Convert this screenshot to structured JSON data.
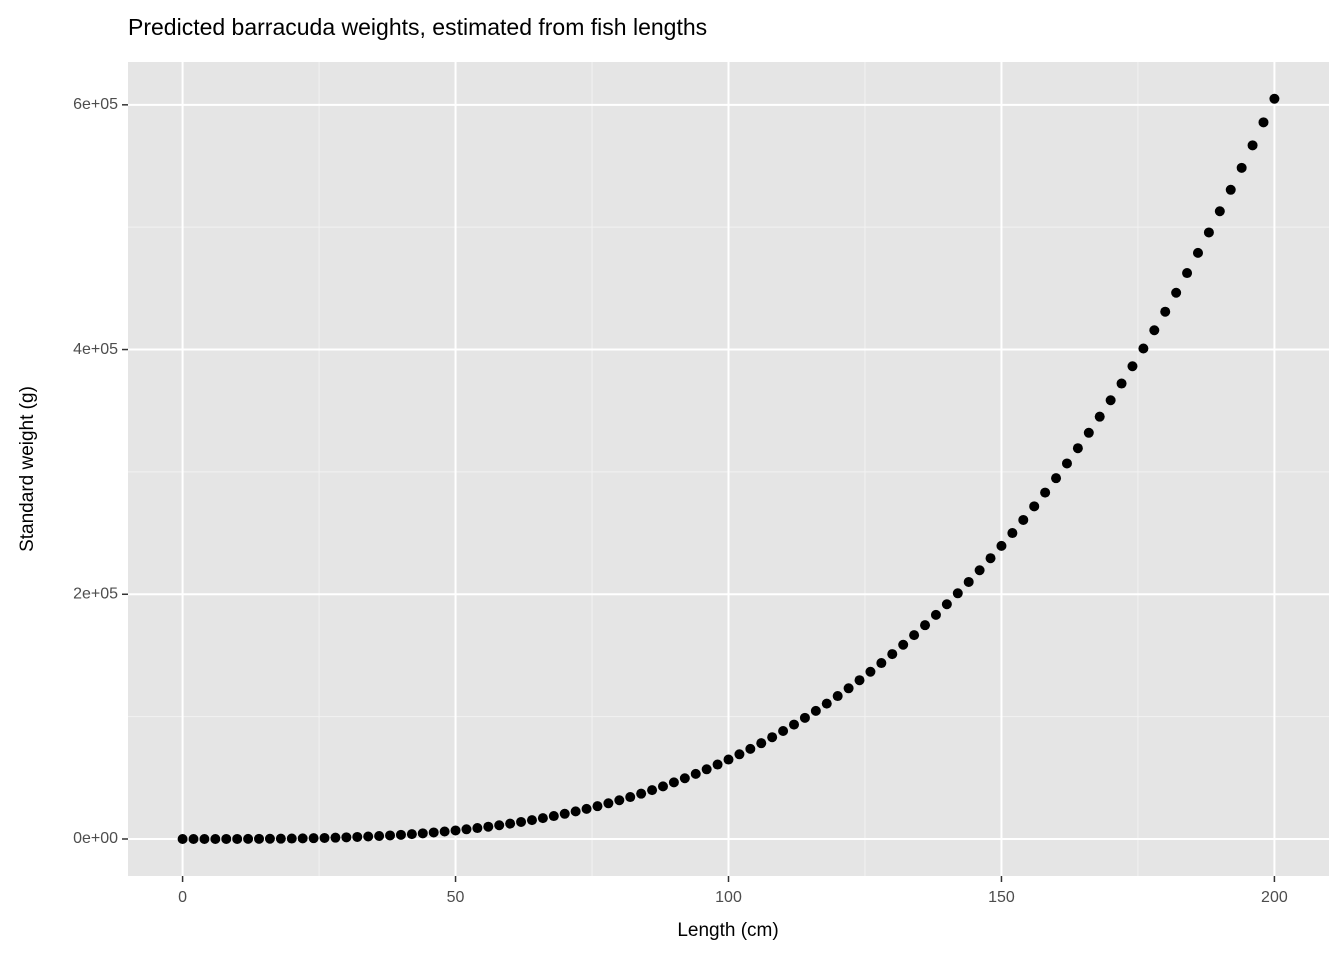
{
  "chart_data": {
    "type": "scatter",
    "title": "Predicted barracuda weights, estimated from fish lengths",
    "x_label": "Length (cm)",
    "y_label": "Standard weight (g)",
    "x": [
      0,
      2,
      4,
      6,
      8,
      10,
      12,
      14,
      16,
      18,
      20,
      22,
      24,
      26,
      28,
      30,
      32,
      34,
      36,
      38,
      40,
      42,
      44,
      46,
      48,
      50,
      52,
      54,
      56,
      58,
      60,
      62,
      64,
      66,
      68,
      70,
      72,
      74,
      76,
      78,
      80,
      82,
      84,
      86,
      88,
      90,
      92,
      94,
      96,
      98,
      100,
      102,
      104,
      106,
      108,
      110,
      112,
      114,
      116,
      118,
      120,
      122,
      124,
      126,
      128,
      130,
      132,
      134,
      136,
      138,
      140,
      142,
      144,
      146,
      148,
      150,
      152,
      154,
      156,
      158,
      160,
      162,
      164,
      166,
      168,
      170,
      172,
      174,
      176,
      178,
      180,
      182,
      184,
      186,
      188,
      190,
      192,
      194,
      196,
      198,
      200
    ],
    "values": [
      0,
      0,
      2,
      8,
      19,
      39,
      70,
      116,
      178,
      260,
      365,
      496,
      656,
      848,
      1077,
      1346,
      1655,
      2013,
      2420,
      2879,
      3397,
      3975,
      4617,
      5326,
      6110,
      6967,
      7907,
      8928,
      10035,
      11234,
      12532,
      13925,
      15432,
      17035,
      18752,
      20588,
      22547,
      24623,
      26830,
      29161,
      31659,
      34275,
      37040,
      39941,
      43018,
      46258,
      49625,
      53206,
      56942,
      60834,
      64937,
      69203,
      73663,
      78321,
      83187,
      88259,
      93508,
      99015,
      104703,
      110619,
      116814,
      123151,
      129778,
      136654,
      143784,
      151112,
      158763,
      166617,
      174742,
      183142,
      191824,
      200792,
      210052,
      219610,
      229472,
      239549,
      250031,
      260733,
      271858,
      283099,
      294886,
      306900,
      319376,
      331958,
      345143,
      358562,
      372203,
      386352,
      400875,
      415782,
      430915,
      446434,
      462511,
      478994,
      495706,
      513014,
      530551,
      548508,
      566889,
      585699,
      604944
    ],
    "color": "#000000",
    "xlim": [
      -10,
      210
    ],
    "ylim": [
      -30250,
      635000
    ],
    "xticks": [
      0,
      50,
      100,
      150,
      200
    ],
    "yticks": [
      {
        "value": 0,
        "label": "0e+00"
      },
      {
        "value": 200000,
        "label": "2e+05"
      },
      {
        "value": 400000,
        "label": "4e+05"
      },
      {
        "value": 600000,
        "label": "6e+05"
      }
    ],
    "x_minor_ticks": [
      25,
      75,
      125,
      175
    ],
    "y_minor_ticks": [
      100000,
      300000,
      500000
    ],
    "grid": true
  }
}
